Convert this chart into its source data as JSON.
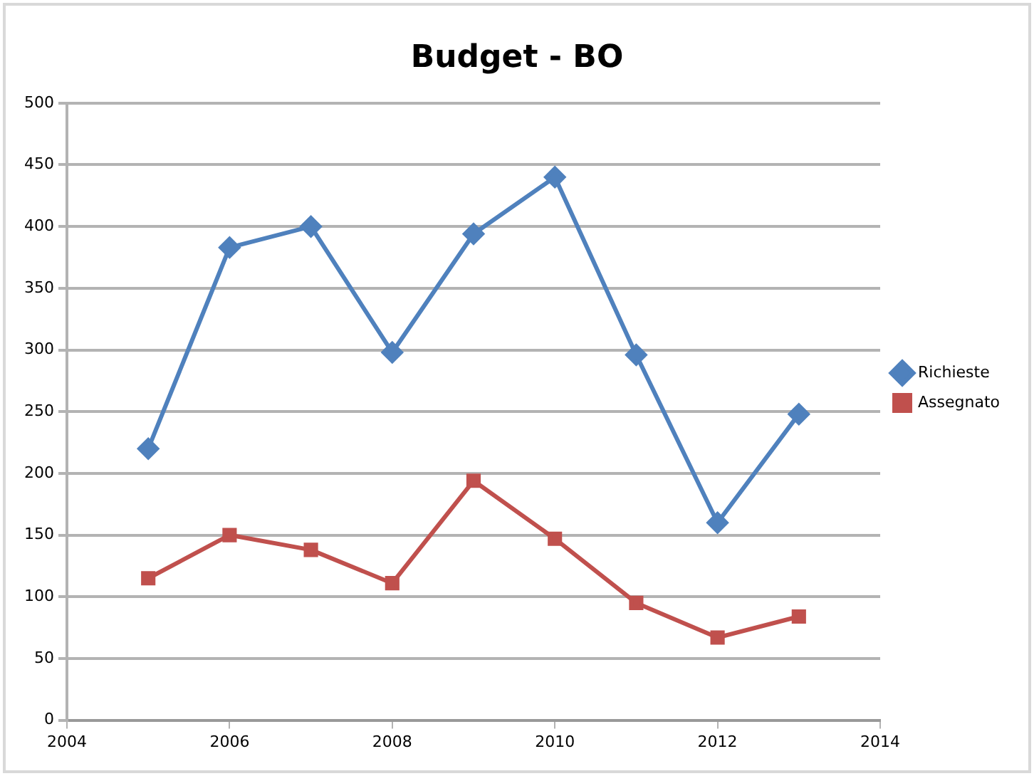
{
  "chart_data": {
    "type": "line",
    "title": "Budget - BO",
    "x": [
      2005,
      2006,
      2007,
      2008,
      2009,
      2010,
      2011,
      2012,
      2013
    ],
    "series": [
      {
        "name": "Richieste",
        "color": "#4f81bd",
        "marker": "diamond",
        "values": [
          220,
          383,
          400,
          298,
          394,
          440,
          296,
          160,
          248
        ]
      },
      {
        "name": "Assegnato",
        "color": "#c0504d",
        "marker": "square",
        "values": [
          115,
          150,
          138,
          111,
          194,
          147,
          95,
          67,
          84
        ]
      }
    ],
    "xlim": [
      2004,
      2014
    ],
    "xticks": [
      2004,
      2006,
      2008,
      2010,
      2012,
      2014
    ],
    "ylim": [
      0,
      500
    ],
    "yticks": [
      0,
      50,
      100,
      150,
      200,
      250,
      300,
      350,
      400,
      450,
      500
    ],
    "grid": "y",
    "legend": "right",
    "line_style": "solid"
  }
}
